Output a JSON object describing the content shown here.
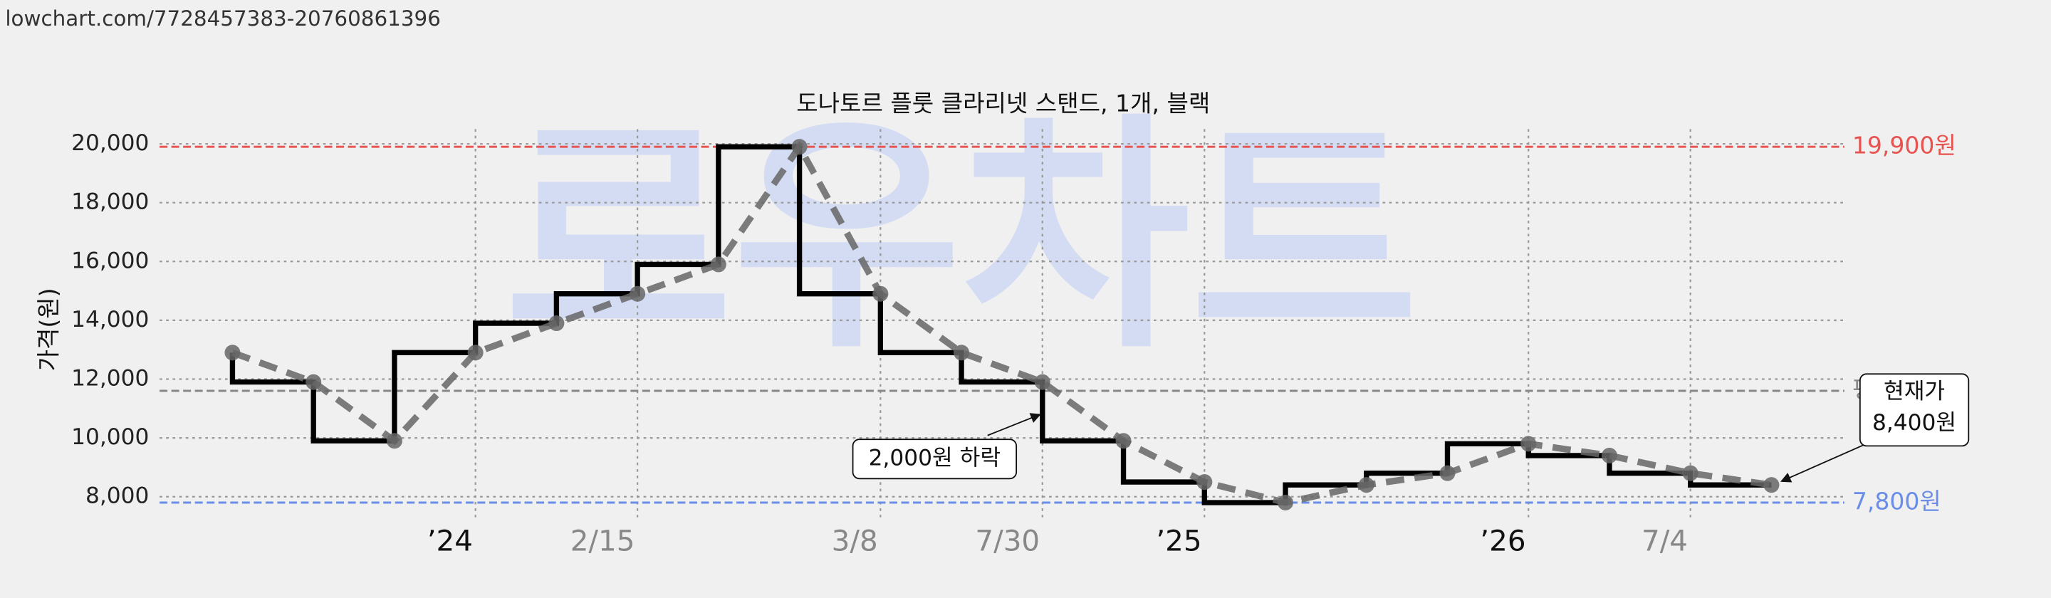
{
  "url": "lowchart.com/7728457383-20760861396",
  "watermark": "로우차트",
  "chart_data": {
    "type": "line",
    "title": "도나토르 플룻 클라리넷 스탠드, 1개, 블랙",
    "y_label": "가격(원)",
    "series": [
      {
        "color": "#000000",
        "values": [
          12900,
          11900,
          9900,
          12900,
          13900,
          14900,
          15900,
          19900,
          14900,
          12900,
          11900,
          9900,
          8500,
          7800,
          8400,
          8800,
          9800,
          9400,
          8800,
          8400
        ]
      }
    ],
    "ylim": [
      7300,
      20500
    ],
    "yticks": [
      {
        "value": 8000,
        "label": "8,000"
      },
      {
        "value": 10000,
        "label": "10,000"
      },
      {
        "value": 12000,
        "label": "12,000"
      },
      {
        "value": 14000,
        "label": "14,000"
      },
      {
        "value": 16000,
        "label": "16,000"
      },
      {
        "value": 18000,
        "label": "18,000"
      },
      {
        "value": 20000,
        "label": "20,000"
      }
    ],
    "xlim": [
      -0.9,
      19.9
    ],
    "xticks": [
      {
        "value": 3,
        "label": "’24"
      },
      {
        "value": 5,
        "label": "2/15"
      },
      {
        "value": 8,
        "label": "3/8"
      },
      {
        "value": 10,
        "label": "7/30"
      },
      {
        "value": 12,
        "label": "’25"
      },
      {
        "value": 16,
        "label": "’26"
      },
      {
        "value": 18,
        "label": "7/4"
      }
    ],
    "grid": true,
    "reference_lines": [
      {
        "value": 19900,
        "label": "19,900원",
        "color": "#e8534f"
      },
      {
        "value": 7800,
        "label": "7,800원",
        "color": "#6a8ee8"
      },
      {
        "value": 11600,
        "label": "평균",
        "color": "#888888"
      }
    ],
    "annotations": [
      "2,000원 하락",
      "현재가",
      "8,400원"
    ]
  }
}
